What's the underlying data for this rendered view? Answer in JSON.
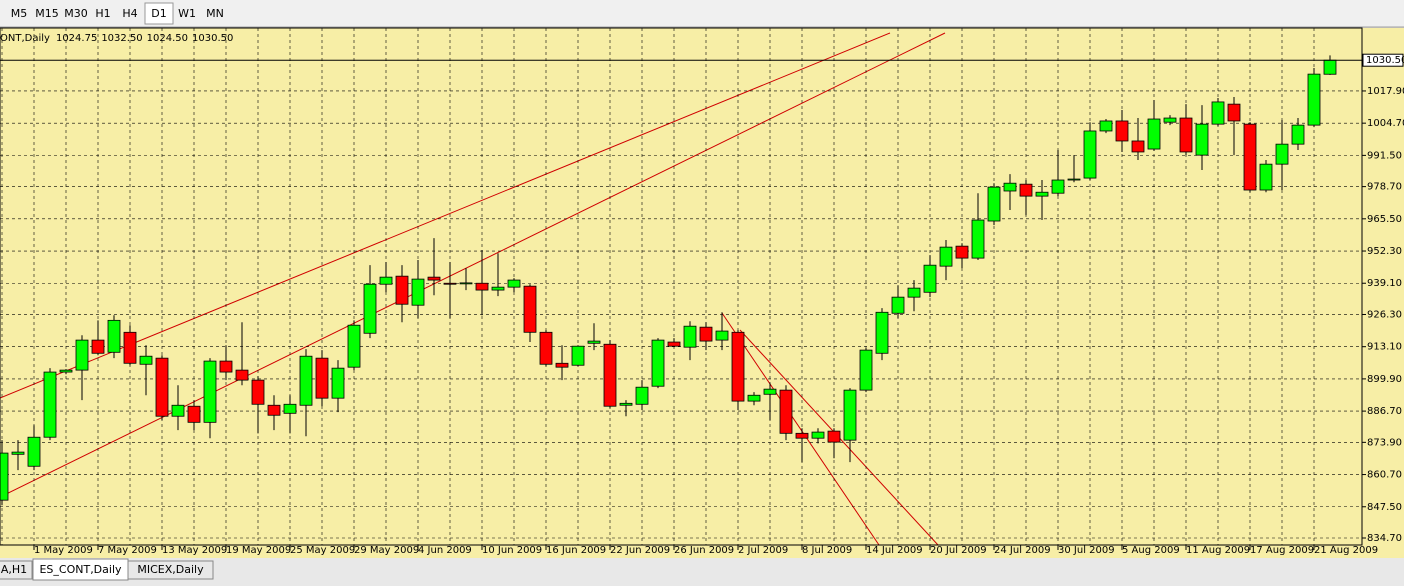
{
  "toolbar": [
    "M5",
    "M15",
    "M30",
    "H1",
    "H4",
    "D1",
    "W1",
    "MN"
  ],
  "toolbar_active": 5,
  "tabs": [
    "A,H1",
    "ES_CONT,Daily",
    "MICEX,Daily"
  ],
  "tabs_active": 1,
  "chart_data": {
    "type": "candlestick",
    "info_label": "ONT,Daily",
    "info_values": [
      "1024.75",
      "1032.50",
      "1024.50",
      "1030.50"
    ],
    "up_color": "#00ff00",
    "down_color": "#ff0000",
    "wick_color": "#000000",
    "background": "#f7eea6",
    "grid": true,
    "ylim": [
      831.83,
      1043.7
    ],
    "yticks": [
      {
        "value": 834.7,
        "label": "834.70"
      },
      {
        "value": 847.5,
        "label": "847.50"
      },
      {
        "value": 860.7,
        "label": "860.70"
      },
      {
        "value": 873.9,
        "label": "873.90"
      },
      {
        "value": 886.7,
        "label": "886.70"
      },
      {
        "value": 899.9,
        "label": "899.90"
      },
      {
        "value": 913.1,
        "label": "913.10"
      },
      {
        "value": 926.3,
        "label": "926.30"
      },
      {
        "value": 939.1,
        "label": "939.10"
      },
      {
        "value": 952.3,
        "label": "952.30"
      },
      {
        "value": 965.5,
        "label": "965.50"
      },
      {
        "value": 978.7,
        "label": "978.70"
      },
      {
        "value": 991.5,
        "label": "991.50"
      },
      {
        "value": 1004.7,
        "label": "1004.70"
      },
      {
        "value": 1017.9,
        "label": "1017.90"
      }
    ],
    "price_line": {
      "value": 1030.5,
      "label": "1030.50"
    },
    "categories": [
      null,
      null,
      "1 May 2009",
      null,
      null,
      null,
      "7 May 2009",
      null,
      null,
      null,
      "13 May 2009",
      null,
      null,
      null,
      "19 May 2009",
      null,
      null,
      null,
      "25 May 2009",
      null,
      null,
      null,
      "29 May 2009",
      null,
      null,
      null,
      "4 Jun 2009",
      null,
      null,
      null,
      "10 Jun 2009",
      null,
      null,
      null,
      "16 Jun 2009",
      null,
      null,
      null,
      "22 Jun 2009",
      null,
      null,
      null,
      "26 Jun 2009",
      null,
      null,
      null,
      "2 Jul 2009",
      null,
      null,
      null,
      "8 Jul 2009",
      null,
      null,
      null,
      "14 Jul 2009",
      null,
      null,
      null,
      "20 Jul 2009",
      null,
      null,
      null,
      "24 Jul 2009",
      null,
      null,
      null,
      "30 Jul 2009",
      null,
      null,
      null,
      "5 Aug 2009",
      null,
      null,
      null,
      "11 Aug 2009",
      null,
      null,
      null,
      "17 Aug 2009",
      null,
      null,
      null,
      "21 Aug 2009",
      null
    ],
    "open": [
      850.2,
      869.0,
      864.1,
      876.0,
      902.7,
      903.5,
      915.8,
      910.8,
      919.0,
      905.9,
      908.4,
      884.6,
      888.7,
      882.1,
      907.2,
      903.5,
      899.4,
      889.1,
      885.8,
      889.1,
      908.4,
      892.0,
      904.7,
      918.6,
      938.7,
      942.0,
      930.1,
      941.6,
      939.1,
      939.0,
      939.1,
      936.3,
      937.5,
      937.9,
      919.0,
      906.3,
      905.5,
      914.5,
      914.1,
      889.1,
      889.5,
      896.9,
      915.0,
      912.9,
      921.1,
      915.8,
      919.0,
      890.8,
      893.6,
      895.3,
      877.6,
      875.6,
      878.5,
      874.8,
      895.3,
      910.4,
      926.8,
      933.4,
      935.4,
      946.1,
      954.3,
      949.4,
      964.6,
      976.9,
      979.7,
      974.8,
      976.0,
      981.4,
      982.2,
      1001.5,
      1005.6,
      997.4,
      994.1,
      1005.1,
      1006.8,
      991.6,
      1004.3,
      1012.5,
      1004.3,
      977.3,
      987.9,
      996.1,
      1003.9,
      1024.75
    ],
    "high": [
      874.8,
      874.8,
      880.9,
      904.3,
      903.9,
      917.8,
      923.9,
      926.0,
      921.9,
      913.7,
      909.6,
      897.3,
      891.2,
      908.4,
      913.7,
      923.1,
      901.0,
      893.2,
      893.2,
      912.1,
      911.7,
      907.6,
      923.9,
      946.5,
      947.8,
      946.5,
      948.6,
      957.6,
      947.8,
      945.3,
      952.7,
      951.4,
      941.2,
      938.7,
      919.9,
      913.7,
      913.7,
      922.7,
      915.8,
      891.2,
      899.4,
      916.6,
      916.6,
      923.5,
      923.1,
      927.2,
      919.9,
      894.5,
      898.1,
      897.3,
      879.7,
      879.7,
      879.7,
      896.1,
      912.5,
      928.9,
      938.3,
      940.4,
      950.6,
      956.8,
      955.5,
      976.0,
      980.1,
      983.8,
      981.4,
      981.4,
      993.7,
      991.6,
      1005.1,
      1006.4,
      1010.1,
      1006.8,
      1014.2,
      1008.0,
      1012.5,
      1012.1,
      1015.0,
      1015.4,
      1005.1,
      989.6,
      1006.0,
      1006.8,
      1027.3,
      1032.5
    ],
    "low": [
      848.1,
      862.5,
      862.5,
      874.8,
      901.8,
      891.2,
      909.6,
      908.4,
      905.5,
      893.2,
      883.0,
      878.9,
      878.9,
      875.6,
      899.4,
      897.3,
      877.6,
      878.9,
      877.6,
      876.4,
      888.7,
      886.3,
      903.5,
      916.6,
      935.4,
      923.1,
      924.8,
      934.2,
      924.8,
      936.3,
      926.0,
      933.8,
      935.4,
      915.0,
      905.1,
      899.4,
      905.1,
      911.7,
      887.9,
      884.6,
      887.1,
      896.1,
      912.9,
      907.6,
      911.7,
      911.7,
      887.1,
      889.1,
      883.0,
      874.8,
      865.8,
      873.5,
      867.4,
      865.8,
      894.5,
      907.6,
      924.8,
      927.6,
      933.4,
      940.4,
      945.3,
      948.6,
      962.9,
      969.1,
      967.0,
      965.0,
      974.8,
      980.5,
      981.4,
      1000.6,
      992.9,
      989.6,
      993.3,
      1003.9,
      991.6,
      985.5,
      1003.5,
      991.6,
      976.4,
      976.4,
      977.3,
      993.7,
      1003.1,
      1024.5
    ],
    "close": [
      869.5,
      869.9,
      876.0,
      902.7,
      903.5,
      915.8,
      910.4,
      923.9,
      906.3,
      909.2,
      884.6,
      889.1,
      882.1,
      907.2,
      902.7,
      899.4,
      889.5,
      885.0,
      889.5,
      909.2,
      892.0,
      904.3,
      921.9,
      938.7,
      941.6,
      930.5,
      940.8,
      940.4,
      938.9,
      939.25,
      936.3,
      937.5,
      940.4,
      919.0,
      905.9,
      904.7,
      913.3,
      915.4,
      888.7,
      889.9,
      896.5,
      915.8,
      913.3,
      921.5,
      915.4,
      919.5,
      890.8,
      893.2,
      895.7,
      877.6,
      875.6,
      878.1,
      874.0,
      895.3,
      911.7,
      927.2,
      933.4,
      937.1,
      946.5,
      953.9,
      949.4,
      965.0,
      978.5,
      980.1,
      974.8,
      976.4,
      981.4,
      981.8,
      1001.5,
      1005.6,
      997.4,
      992.9,
      1006.4,
      1006.8,
      992.9,
      1004.3,
      1013.4,
      1005.6,
      977.3,
      987.9,
      996.1,
      1003.9,
      1024.8,
      1030.5
    ]
  }
}
